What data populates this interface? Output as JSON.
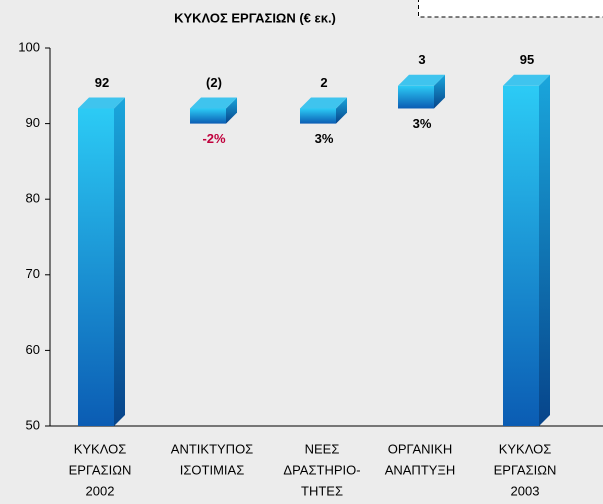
{
  "chart_data": {
    "type": "waterfall",
    "title": "ΚΥΚΛΟΣ ΕΡΓΑΣΙΩΝ (€ εκ.)",
    "categories": [
      [
        "ΚΥΚΛΟΣ",
        "ΕΡΓΑΣΙΩΝ",
        "2002"
      ],
      [
        "ΑΝΤΙΚΤΥΠΟΣ",
        "ΙΣΟΤΙΜΙΑΣ"
      ],
      [
        "ΝΕΕΣ",
        "ΔΡΑΣΤΗΡΙΟ-",
        "ΤΗΤΕΣ"
      ],
      [
        "ΟΡΓΑΝΙΚΗ",
        "ΑΝΑΠΤΥΞΗ"
      ],
      [
        "ΚΥΚΛΟΣ",
        "ΕΡΓΑΣΙΩΝ",
        "2003"
      ]
    ],
    "values": [
      92,
      -2,
      2,
      3,
      95
    ],
    "value_labels": [
      "92",
      "(2)",
      "2",
      "3",
      "95"
    ],
    "measures": [
      "total",
      "relative",
      "relative",
      "relative",
      "total"
    ],
    "percent_labels": [
      null,
      "-2%",
      "3%",
      "3%",
      null
    ],
    "percent_colors": [
      null,
      "#c0003c",
      "#000000",
      "#000000",
      null
    ],
    "color": "#1a8ad8",
    "ylim": [
      50,
      100
    ],
    "yticks": [
      50,
      60,
      70,
      80,
      90,
      100
    ]
  }
}
